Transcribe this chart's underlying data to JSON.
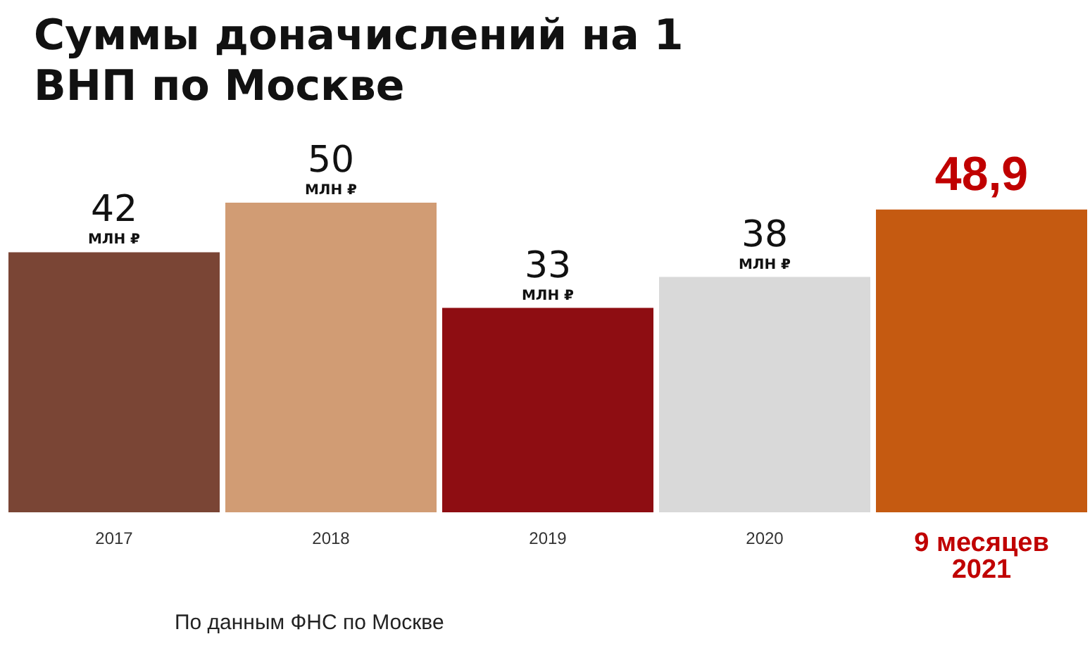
{
  "chart_data": {
    "type": "bar",
    "title": "Суммы доначислений на 1 ВНП по Москве",
    "categories": [
      "2017",
      "2018",
      "2019",
      "2020",
      "9 месяцев 2021"
    ],
    "values": [
      42,
      50,
      33,
      38,
      48.9
    ],
    "colors": [
      "#7a4535",
      "#d19c74",
      "#8e0d12",
      "#d9d9d9",
      "#c55a11"
    ],
    "value_labels": [
      "42 МЛН ₽",
      "50 МЛН ₽",
      "33 МЛН ₽",
      "38 МЛН ₽",
      "48,9"
    ],
    "annotations": [
      "По данным ФНС по Москве"
    ],
    "grid": false,
    "legend": false
  }
}
